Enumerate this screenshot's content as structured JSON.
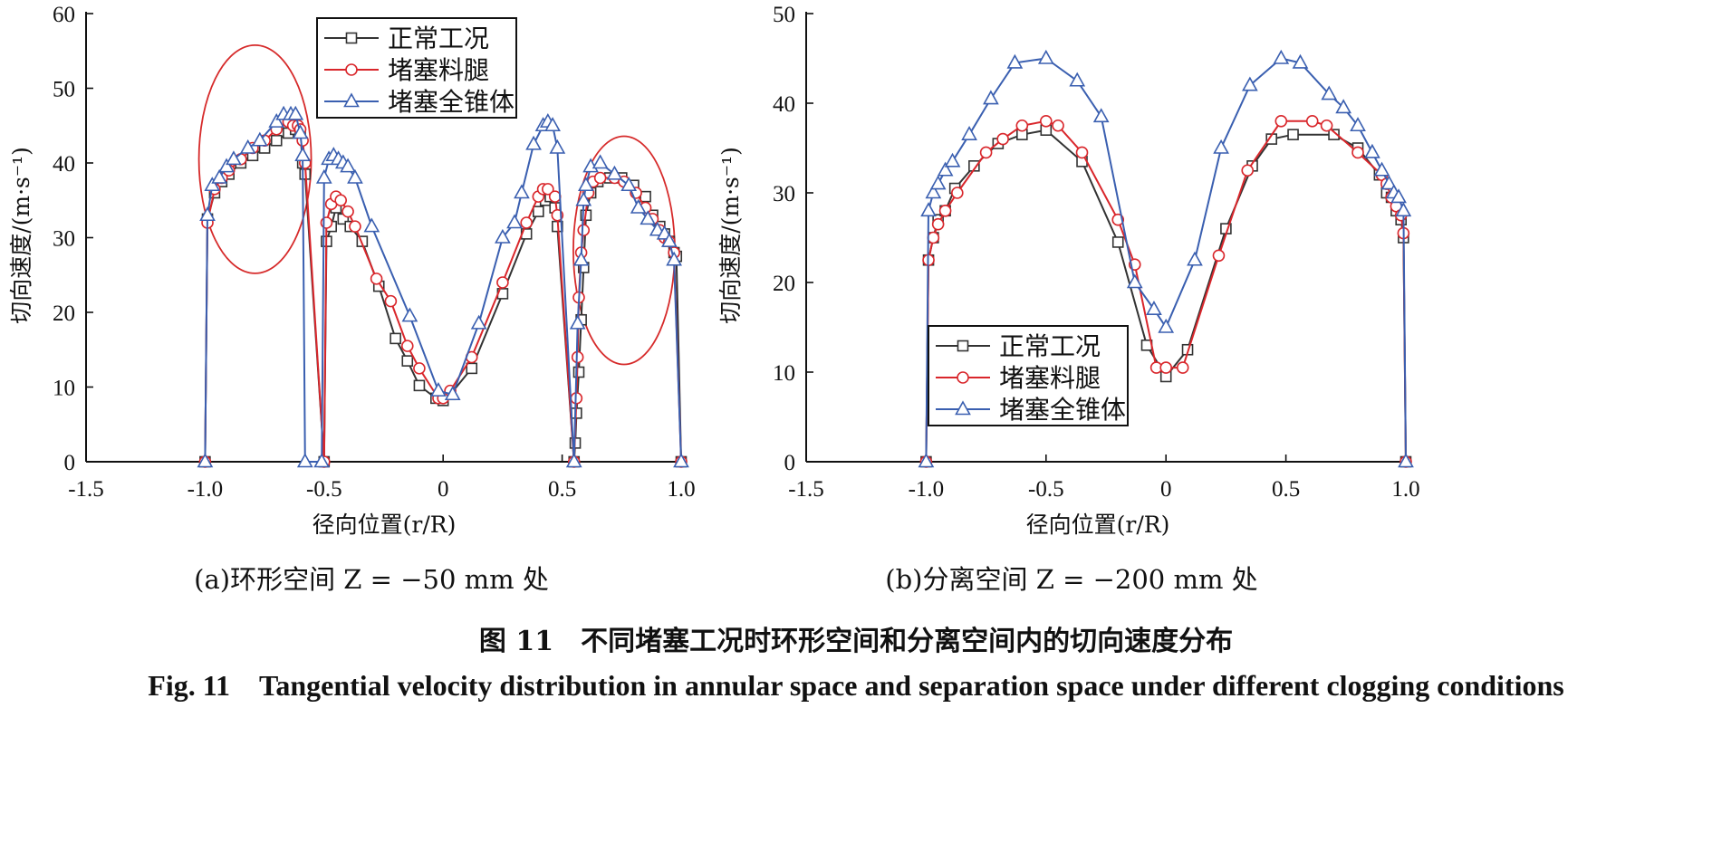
{
  "colors": {
    "normal": "#333333",
    "leg": "#d9262b",
    "cone": "#3a5fb0",
    "ellipse": "#d62a2a"
  },
  "chart_data": [
    {
      "type": "line",
      "xlabel": "径向位置(r/R)",
      "ylabel": "切向速度/(m·s⁻¹)",
      "xlim": [
        -1.5,
        1.0
      ],
      "ylim": [
        0,
        60
      ],
      "xticks": [
        "-1.5",
        "-1.0",
        "-0.5",
        "0",
        "0.5",
        "1.0"
      ],
      "yticks": [
        "0",
        "10",
        "20",
        "30",
        "40",
        "50",
        "60"
      ],
      "legend": {
        "placement": "top-center"
      },
      "subcaption": "(a)环形空间 Z = −50 mm 处",
      "series": [
        {
          "name": "正常工况",
          "marker": "square",
          "x": [
            -1.0,
            -0.99,
            -0.96,
            -0.93,
            -0.9,
            -0.85,
            -0.8,
            -0.75,
            -0.7,
            -0.65,
            -0.62,
            -0.6,
            -0.59,
            -0.58,
            -0.5,
            -0.49,
            -0.47,
            -0.45,
            -0.42,
            -0.39,
            -0.34,
            -0.27,
            -0.2,
            -0.15,
            -0.1,
            -0.03,
            0,
            0.03,
            0.12,
            0.25,
            0.35,
            0.4,
            0.43,
            0.45,
            0.47,
            0.48,
            0.55,
            0.555,
            0.56,
            0.57,
            0.58,
            0.59,
            0.6,
            0.62,
            0.65,
            0.7,
            0.75,
            0.8,
            0.85,
            0.88,
            0.91,
            0.93,
            0.95,
            0.97,
            0.98,
            1.0
          ],
          "y": [
            0,
            32.5,
            36,
            37.5,
            38.5,
            40,
            41,
            42,
            43,
            44,
            44.5,
            44,
            40,
            38.5,
            0,
            29.5,
            31.5,
            34,
            32.5,
            31.5,
            29.5,
            23.5,
            16.5,
            13.5,
            10.2,
            8.5,
            8.2,
            9,
            12.5,
            22.5,
            30.5,
            33.5,
            35,
            35.5,
            34,
            31.5,
            0,
            2.5,
            6.5,
            12,
            19,
            26,
            33,
            36,
            37.5,
            38,
            38,
            37,
            35.5,
            33,
            31.5,
            30.5,
            29.5,
            28,
            27.5,
            0
          ]
        },
        {
          "name": "堵塞料腿",
          "marker": "circle",
          "x": [
            -1.0,
            -0.99,
            -0.96,
            -0.93,
            -0.9,
            -0.85,
            -0.8,
            -0.75,
            -0.7,
            -0.65,
            -0.63,
            -0.61,
            -0.6,
            -0.59,
            -0.58,
            -0.5,
            -0.49,
            -0.47,
            -0.45,
            -0.43,
            -0.4,
            -0.37,
            -0.28,
            -0.22,
            -0.15,
            -0.1,
            -0.02,
            0,
            0.03,
            0.12,
            0.25,
            0.35,
            0.4,
            0.42,
            0.44,
            0.47,
            0.48,
            0.55,
            0.56,
            0.565,
            0.57,
            0.58,
            0.59,
            0.61,
            0.63,
            0.66,
            0.72,
            0.76,
            0.81,
            0.85,
            0.88,
            0.91,
            0.93,
            0.95,
            0.97,
            1.0
          ],
          "y": [
            0,
            32,
            36.5,
            38,
            39,
            40.5,
            42,
            43,
            44.5,
            45.5,
            45,
            45,
            44.5,
            43,
            40,
            0,
            32,
            34.5,
            35.5,
            35,
            33.5,
            31.5,
            24.5,
            21.5,
            15.5,
            12.5,
            8.5,
            8.5,
            9.5,
            14,
            24,
            32,
            35.5,
            36.5,
            36.5,
            35.5,
            33,
            0,
            8.5,
            14,
            22,
            28,
            31,
            36,
            37.5,
            38,
            38,
            37.5,
            36,
            34,
            32.5,
            31,
            30,
            29.5,
            28,
            0
          ]
        },
        {
          "name": "堵塞全锥体",
          "marker": "triangle",
          "x": [
            -1.0,
            -0.99,
            -0.97,
            -0.94,
            -0.91,
            -0.88,
            -0.82,
            -0.77,
            -0.7,
            -0.67,
            -0.64,
            -0.62,
            -0.6,
            -0.59,
            -0.58,
            -0.51,
            -0.5,
            -0.48,
            -0.46,
            -0.44,
            -0.42,
            -0.4,
            -0.37,
            -0.3,
            -0.14,
            -0.02,
            0.04,
            0.15,
            0.25,
            0.3,
            0.33,
            0.38,
            0.42,
            0.44,
            0.46,
            0.48,
            0.55,
            0.565,
            0.58,
            0.59,
            0.6,
            0.62,
            0.66,
            0.72,
            0.78,
            0.82,
            0.86,
            0.9,
            0.93,
            0.95,
            0.97,
            1.0
          ],
          "y": [
            0,
            33,
            37,
            38,
            39.5,
            40.5,
            42,
            43,
            45.5,
            46.5,
            46.5,
            46.5,
            44,
            41,
            0,
            0,
            38,
            40.5,
            41,
            40.5,
            40,
            39.5,
            38,
            31.5,
            19.5,
            9.5,
            9,
            18.5,
            30,
            32,
            36,
            42.5,
            45,
            45.5,
            45,
            42,
            0,
            18.5,
            27,
            35,
            37,
            39.5,
            40,
            38.5,
            37,
            34,
            32.5,
            31,
            30.5,
            29.5,
            27,
            0
          ]
        }
      ]
    },
    {
      "type": "line",
      "xlabel": "径向位置(r/R)",
      "ylabel": "切向速度/(m·s⁻¹)",
      "xlim": [
        -1.5,
        1.0
      ],
      "ylim": [
        0,
        50
      ],
      "xticks": [
        "-1.5",
        "-1.0",
        "-0.5",
        "0",
        "0.5",
        "1.0"
      ],
      "yticks": [
        "0",
        "10",
        "20",
        "30",
        "40",
        "50"
      ],
      "legend": {
        "placement": "bottom-left"
      },
      "subcaption": "(b)分离空间 Z = −200 mm 处",
      "series": [
        {
          "name": "正常工况",
          "marker": "square",
          "x": [
            -1.0,
            -0.99,
            -0.97,
            -0.95,
            -0.92,
            -0.88,
            -0.8,
            -0.7,
            -0.6,
            -0.5,
            -0.35,
            -0.2,
            -0.08,
            0,
            0.09,
            0.25,
            0.36,
            0.44,
            0.53,
            0.7,
            0.8,
            0.89,
            0.92,
            0.94,
            0.96,
            0.98,
            0.99,
            1.0
          ],
          "y": [
            0,
            22.5,
            25,
            27,
            28,
            30.5,
            33,
            35.5,
            36.5,
            37,
            33.5,
            24.5,
            13,
            9.5,
            12.5,
            26,
            33,
            36,
            36.5,
            36.5,
            35,
            32,
            30,
            29.5,
            28,
            27,
            25,
            0
          ]
        },
        {
          "name": "堵塞料腿",
          "marker": "circle",
          "x": [
            -1.0,
            -0.99,
            -0.97,
            -0.95,
            -0.92,
            -0.87,
            -0.75,
            -0.68,
            -0.6,
            -0.5,
            -0.45,
            -0.35,
            -0.2,
            -0.13,
            -0.04,
            0,
            0.07,
            0.22,
            0.34,
            0.48,
            0.61,
            0.67,
            0.8,
            0.9,
            0.92,
            0.94,
            0.96,
            0.98,
            0.99,
            1.0
          ],
          "y": [
            0,
            22.5,
            25,
            26.5,
            28,
            30,
            34.5,
            36,
            37.5,
            38,
            37.5,
            34.5,
            27,
            22,
            10.5,
            10.5,
            10.5,
            23,
            32.5,
            38,
            38,
            37.5,
            34.5,
            32,
            31,
            29.5,
            28.5,
            27.5,
            25.5,
            0
          ]
        },
        {
          "name": "堵塞全锥体",
          "marker": "triangle",
          "x": [
            -1.0,
            -0.99,
            -0.97,
            -0.95,
            -0.92,
            -0.89,
            -0.82,
            -0.73,
            -0.63,
            -0.5,
            -0.37,
            -0.27,
            -0.13,
            -0.05,
            0,
            0.12,
            0.23,
            0.35,
            0.48,
            0.56,
            0.68,
            0.74,
            0.8,
            0.86,
            0.9,
            0.93,
            0.95,
            0.97,
            0.99,
            1.0
          ],
          "y": [
            0,
            28,
            30,
            31,
            32.5,
            33.5,
            36.5,
            40.5,
            44.5,
            45,
            42.5,
            38.5,
            20,
            17,
            15,
            22.5,
            35,
            42,
            45,
            44.5,
            41,
            39.5,
            37.5,
            34.5,
            32.5,
            31,
            30,
            29.5,
            28,
            0
          ]
        }
      ]
    }
  ],
  "figure": {
    "caption_zh": "图 11　不同堵塞工况时环形空间和分离空间内的切向速度分布",
    "caption_en": "Fig. 11　Tangential velocity distribution in annular space and separation space under different clogging conditions"
  }
}
